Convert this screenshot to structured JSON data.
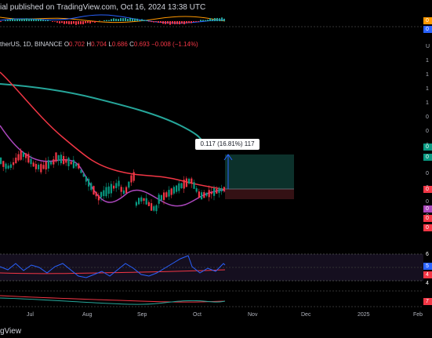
{
  "header": {
    "published_text": "ial published on TradingView.com, Oct 16, 2024 13:38 UTC"
  },
  "symbol_line": {
    "name": "therUS, 1D, BINANCE",
    "o_label": "O",
    "o_value": "0.702",
    "h_label": "H",
    "h_value": "0.704",
    "l_label": "L",
    "l_value": "0.686",
    "c_label": "C",
    "c_value": "0.693",
    "change": "−0.008 (−1.14%)"
  },
  "measure_tooltip": "0.117 (16.81%) 117",
  "x_axis_labels": [
    "Jul",
    "Aug",
    "Sep",
    "Oct",
    "Nov",
    "Dec",
    "2025",
    "Feb"
  ],
  "right_axis_ticks": [
    "U",
    "1",
    "1",
    "1",
    "1",
    "0",
    "0",
    "0",
    "0",
    "0",
    "0",
    "0",
    "0",
    "0"
  ],
  "right_pills": [
    {
      "text": "0",
      "color": "#089981"
    },
    {
      "text": "0",
      "color": "#089981"
    },
    {
      "text": "0",
      "color": "#f23645"
    },
    {
      "text": "0",
      "color": "#ab47bc"
    },
    {
      "text": "0",
      "color": "#f23645"
    },
    {
      "text": "0",
      "color": "#f23645"
    }
  ],
  "rsi_pills": [
    {
      "text": "6",
      "color": "#000"
    },
    {
      "text": "5",
      "color": "#2962ff"
    },
    {
      "text": "4",
      "color": "#f23645"
    },
    {
      "text": "4",
      "color": "#000"
    }
  ],
  "macd_pill": {
    "text": "7",
    "color": "#f23645"
  },
  "top_pills": [
    {
      "text": "0",
      "color": "#ff9800"
    },
    {
      "text": "0",
      "color": "#2962ff"
    }
  ],
  "brand": "gView",
  "colors": {
    "ema_slow": "#26a69a",
    "ema_mid": "#f23645",
    "ema_fast": "#ab47bc",
    "up": "#089981",
    "down": "#f23645",
    "rsi": "#2962ff"
  }
}
